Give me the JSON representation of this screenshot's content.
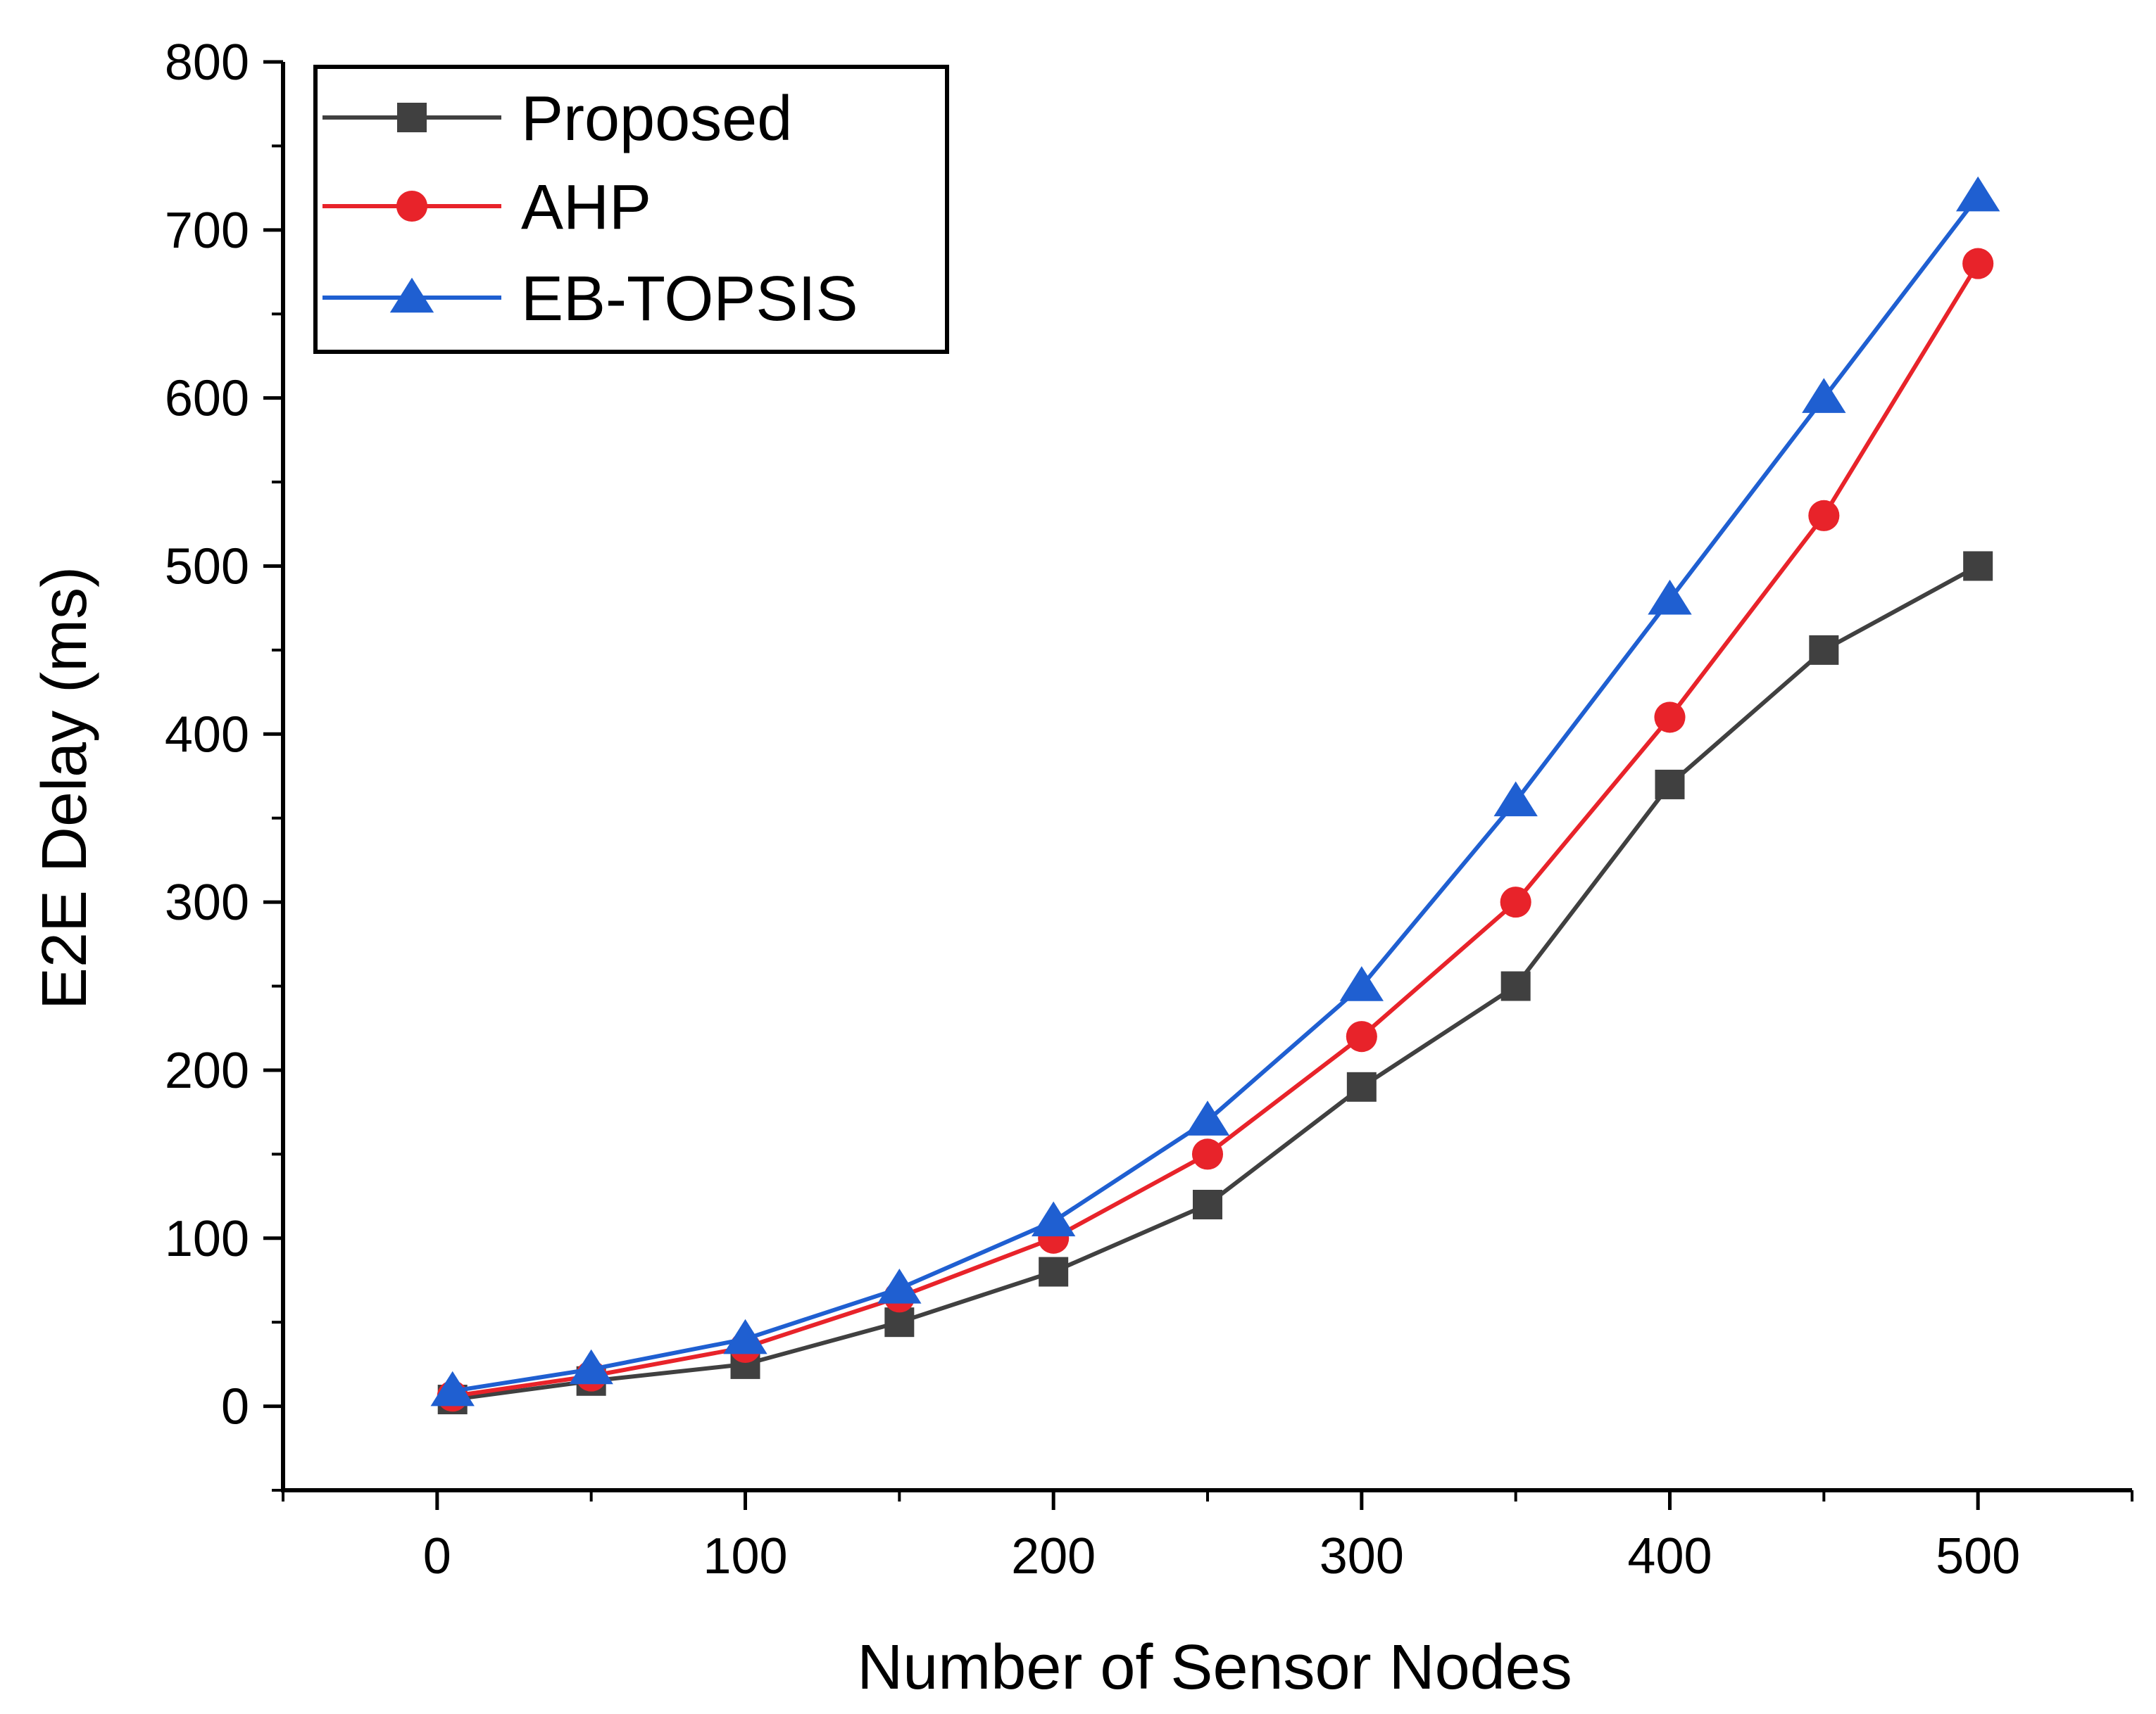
{
  "chart_data": {
    "type": "line",
    "title": "",
    "xlabel": "Number of Sensor Nodes",
    "ylabel": "E2E Delay (ms)",
    "xlim": [
      -50,
      550
    ],
    "ylim": [
      -50,
      800
    ],
    "xticks": [
      0,
      100,
      200,
      300,
      400,
      500
    ],
    "yticks": [
      0,
      100,
      200,
      300,
      400,
      500,
      600,
      700,
      800
    ],
    "grid": false,
    "legend_position": "top-left",
    "x": [
      5,
      50,
      100,
      150,
      200,
      250,
      300,
      350,
      400,
      450,
      500
    ],
    "series": [
      {
        "name": "Proposed",
        "color": "#404040",
        "marker": "square",
        "values": [
          4,
          15,
          25,
          50,
          80,
          120,
          190,
          250,
          370,
          450,
          500
        ]
      },
      {
        "name": "AHP",
        "color": "#e8232a",
        "marker": "circle",
        "values": [
          6,
          18,
          35,
          65,
          100,
          150,
          220,
          300,
          410,
          530,
          680
        ]
      },
      {
        "name": "EB-TOPSIS",
        "color": "#1f5fd1",
        "marker": "triangle",
        "values": [
          9,
          22,
          40,
          70,
          110,
          170,
          250,
          360,
          480,
          600,
          720
        ]
      }
    ]
  }
}
